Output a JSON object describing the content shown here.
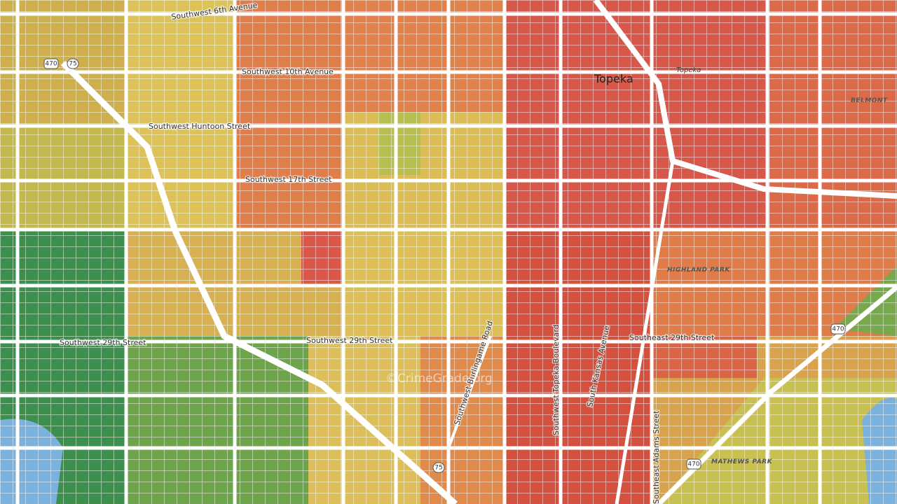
{
  "labels": {
    "streets": [
      "Southwest 6th Avenue",
      "Southwest 10th Avenue",
      "Southwest Huntoon Street",
      "Southwest 17th Street",
      "Southwest 29th Street",
      "Southwest 29th Street",
      "Southeast 29th Street",
      "Southwest Burlingame Road",
      "Southwest Topeka Boulevard",
      "South Kansas Avenue",
      "Southeast Adams Street"
    ],
    "places": [
      "Topeka",
      "Topeka",
      "BELMONT",
      "HIGHLAND PARK",
      "MATHEWS PARK"
    ],
    "shields": [
      "470",
      "75",
      "470",
      "75",
      "470"
    ],
    "watermark": "©CrimeGrade.org"
  }
}
